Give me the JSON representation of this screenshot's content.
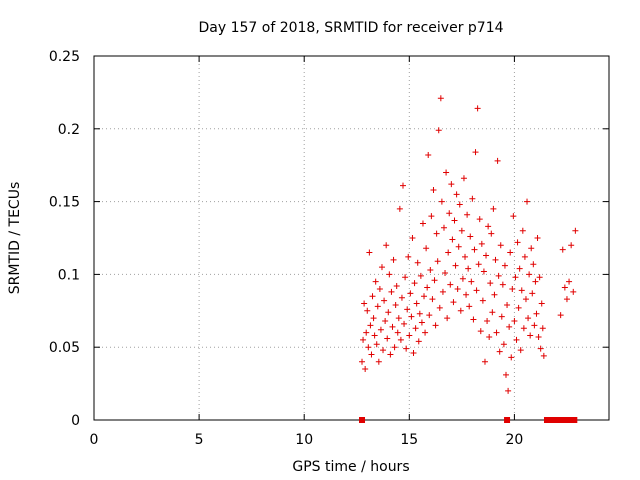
{
  "chart_data": {
    "type": "scatter",
    "title": "Day 157 of 2018, SRMTID for receiver p714",
    "xlabel": "GPS time / hours",
    "ylabel": "SRMTID / TECUs",
    "xlim": [
      0,
      24.5
    ],
    "ylim": [
      0,
      0.25
    ],
    "xticks": [
      0,
      5,
      10,
      15,
      20
    ],
    "xtick_labels": [
      "0",
      "5",
      "10",
      "15",
      "20"
    ],
    "yticks": [
      0,
      0.05,
      0.1,
      0.15,
      0.2,
      0.25
    ],
    "ytick_labels": [
      "0",
      "0.05",
      "0.1",
      "0.15",
      "0.2",
      "0.25"
    ],
    "grid": true,
    "marker": "+",
    "color": "#e00000",
    "zero_markers_x": [
      12.75,
      19.65,
      21.55,
      21.7,
      21.85,
      22.1,
      22.3,
      22.5,
      22.7,
      22.85
    ],
    "series": [
      {
        "name": "SRMTID",
        "points": [
          [
            12.75,
            0.04
          ],
          [
            12.8,
            0.055
          ],
          [
            12.85,
            0.08
          ],
          [
            12.9,
            0.035
          ],
          [
            12.95,
            0.06
          ],
          [
            13.0,
            0.075
          ],
          [
            13.05,
            0.05
          ],
          [
            13.1,
            0.115
          ],
          [
            13.15,
            0.065
          ],
          [
            13.2,
            0.045
          ],
          [
            13.25,
            0.085
          ],
          [
            13.3,
            0.07
          ],
          [
            13.35,
            0.058
          ],
          [
            13.4,
            0.095
          ],
          [
            13.45,
            0.052
          ],
          [
            13.5,
            0.078
          ],
          [
            13.55,
            0.04
          ],
          [
            13.6,
            0.09
          ],
          [
            13.65,
            0.062
          ],
          [
            13.7,
            0.105
          ],
          [
            13.75,
            0.048
          ],
          [
            13.8,
            0.082
          ],
          [
            13.85,
            0.068
          ],
          [
            13.9,
            0.12
          ],
          [
            13.95,
            0.056
          ],
          [
            14.0,
            0.074
          ],
          [
            14.05,
            0.1
          ],
          [
            14.1,
            0.045
          ],
          [
            14.15,
            0.088
          ],
          [
            14.2,
            0.064
          ],
          [
            14.25,
            0.11
          ],
          [
            14.3,
            0.05
          ],
          [
            14.35,
            0.079
          ],
          [
            14.4,
            0.092
          ],
          [
            14.45,
            0.06
          ],
          [
            14.5,
            0.07
          ],
          [
            14.55,
            0.145
          ],
          [
            14.6,
            0.055
          ],
          [
            14.65,
            0.084
          ],
          [
            14.7,
            0.161
          ],
          [
            14.75,
            0.066
          ],
          [
            14.8,
            0.098
          ],
          [
            14.85,
            0.049
          ],
          [
            14.9,
            0.076
          ],
          [
            14.95,
            0.112
          ],
          [
            15.0,
            0.058
          ],
          [
            15.05,
            0.087
          ],
          [
            15.1,
            0.071
          ],
          [
            15.15,
            0.125
          ],
          [
            15.2,
            0.046
          ],
          [
            15.25,
            0.094
          ],
          [
            15.3,
            0.063
          ],
          [
            15.35,
            0.08
          ],
          [
            15.4,
            0.108
          ],
          [
            15.45,
            0.054
          ],
          [
            15.5,
            0.073
          ],
          [
            15.55,
            0.099
          ],
          [
            15.6,
            0.067
          ],
          [
            15.65,
            0.135
          ],
          [
            15.7,
            0.085
          ],
          [
            15.75,
            0.06
          ],
          [
            15.8,
            0.118
          ],
          [
            15.85,
            0.091
          ],
          [
            15.9,
            0.182
          ],
          [
            15.95,
            0.072
          ],
          [
            16.0,
            0.103
          ],
          [
            16.05,
            0.14
          ],
          [
            16.1,
            0.083
          ],
          [
            16.15,
            0.158
          ],
          [
            16.2,
            0.096
          ],
          [
            16.25,
            0.065
          ],
          [
            16.3,
            0.128
          ],
          [
            16.35,
            0.109
          ],
          [
            16.4,
            0.199
          ],
          [
            16.45,
            0.077
          ],
          [
            16.5,
            0.221
          ],
          [
            16.55,
            0.15
          ],
          [
            16.6,
            0.088
          ],
          [
            16.65,
            0.132
          ],
          [
            16.7,
            0.101
          ],
          [
            16.75,
            0.17
          ],
          [
            16.8,
            0.07
          ],
          [
            16.85,
            0.115
          ],
          [
            16.9,
            0.142
          ],
          [
            16.95,
            0.093
          ],
          [
            17.0,
            0.162
          ],
          [
            17.05,
            0.124
          ],
          [
            17.1,
            0.081
          ],
          [
            17.15,
            0.137
          ],
          [
            17.2,
            0.106
          ],
          [
            17.25,
            0.155
          ],
          [
            17.3,
            0.09
          ],
          [
            17.35,
            0.119
          ],
          [
            17.4,
            0.148
          ],
          [
            17.45,
            0.075
          ],
          [
            17.5,
            0.13
          ],
          [
            17.55,
            0.097
          ],
          [
            17.6,
            0.166
          ],
          [
            17.65,
            0.112
          ],
          [
            17.7,
            0.086
          ],
          [
            17.75,
            0.141
          ],
          [
            17.8,
            0.104
          ],
          [
            17.85,
            0.078
          ],
          [
            17.9,
            0.126
          ],
          [
            17.95,
            0.095
          ],
          [
            18.0,
            0.152
          ],
          [
            18.05,
            0.069
          ],
          [
            18.1,
            0.117
          ],
          [
            18.15,
            0.184
          ],
          [
            18.2,
            0.089
          ],
          [
            18.25,
            0.214
          ],
          [
            18.3,
            0.107
          ],
          [
            18.35,
            0.138
          ],
          [
            18.4,
            0.061
          ],
          [
            18.45,
            0.121
          ],
          [
            18.5,
            0.082
          ],
          [
            18.55,
            0.102
          ],
          [
            18.6,
            0.04
          ],
          [
            18.65,
            0.113
          ],
          [
            18.7,
            0.068
          ],
          [
            18.75,
            0.133
          ],
          [
            18.8,
            0.057
          ],
          [
            18.85,
            0.094
          ],
          [
            18.9,
            0.128
          ],
          [
            18.95,
            0.074
          ],
          [
            19.0,
            0.145
          ],
          [
            19.05,
            0.086
          ],
          [
            19.1,
            0.11
          ],
          [
            19.15,
            0.06
          ],
          [
            19.2,
            0.178
          ],
          [
            19.25,
            0.099
          ],
          [
            19.3,
            0.047
          ],
          [
            19.35,
            0.12
          ],
          [
            19.4,
            0.071
          ],
          [
            19.45,
            0.093
          ],
          [
            19.5,
            0.052
          ],
          [
            19.55,
            0.106
          ],
          [
            19.6,
            0.031
          ],
          [
            19.65,
            0.079
          ],
          [
            19.7,
            0.02
          ],
          [
            19.75,
            0.064
          ],
          [
            19.8,
            0.115
          ],
          [
            19.85,
            0.043
          ],
          [
            19.9,
            0.09
          ],
          [
            19.95,
            0.14
          ],
          [
            20.0,
            0.068
          ],
          [
            20.05,
            0.098
          ],
          [
            20.1,
            0.055
          ],
          [
            20.15,
            0.122
          ],
          [
            20.2,
            0.077
          ],
          [
            20.25,
            0.104
          ],
          [
            20.3,
            0.048
          ],
          [
            20.35,
            0.089
          ],
          [
            20.4,
            0.13
          ],
          [
            20.45,
            0.063
          ],
          [
            20.5,
            0.112
          ],
          [
            20.55,
            0.083
          ],
          [
            20.6,
            0.15
          ],
          [
            20.65,
            0.07
          ],
          [
            20.7,
            0.1
          ],
          [
            20.75,
            0.058
          ],
          [
            20.8,
            0.118
          ],
          [
            20.85,
            0.087
          ],
          [
            20.9,
            0.107
          ],
          [
            20.95,
            0.065
          ],
          [
            21.0,
            0.095
          ],
          [
            21.05,
            0.073
          ],
          [
            21.1,
            0.125
          ],
          [
            21.15,
            0.057
          ],
          [
            21.2,
            0.098
          ],
          [
            21.25,
            0.049
          ],
          [
            21.3,
            0.08
          ],
          [
            21.35,
            0.063
          ],
          [
            21.4,
            0.044
          ],
          [
            22.2,
            0.072
          ],
          [
            22.3,
            0.117
          ],
          [
            22.4,
            0.091
          ],
          [
            22.5,
            0.083
          ],
          [
            22.6,
            0.095
          ],
          [
            22.7,
            0.12
          ],
          [
            22.8,
            0.088
          ],
          [
            22.9,
            0.13
          ]
        ]
      }
    ]
  }
}
